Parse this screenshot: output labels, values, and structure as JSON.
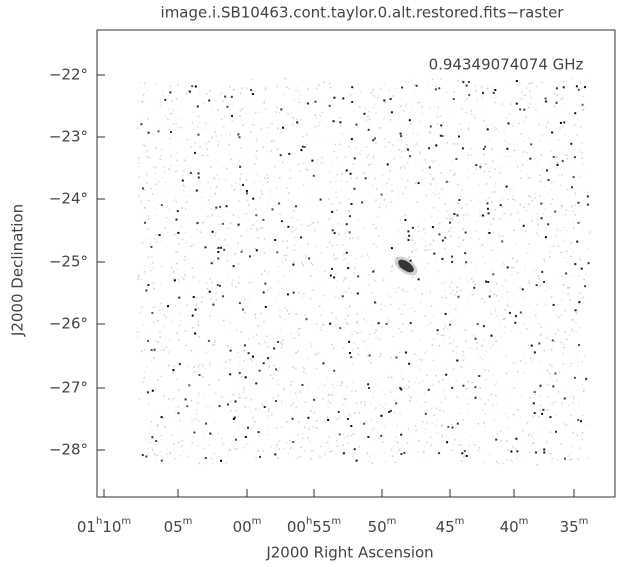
{
  "title": "image.i.SB10463.cont.taylor.0.alt.restored.fits−raster",
  "frequency": "0.94349074074 GHz",
  "y_axis": {
    "label": "J2000 Declination",
    "ticks": [
      "−22°",
      "−23°",
      "−24°",
      "−25°",
      "−26°",
      "−27°",
      "−28°"
    ]
  },
  "x_axis": {
    "label": "J2000 Right Ascension",
    "ticks": [
      [
        "01",
        "h",
        "10",
        "m"
      ],
      [
        "05",
        "m"
      ],
      [
        "00",
        "m"
      ],
      [
        "00",
        "h",
        "55",
        "m"
      ],
      [
        "50",
        "m"
      ],
      [
        "45",
        "m"
      ],
      [
        "40",
        "m"
      ],
      [
        "35",
        "m"
      ]
    ]
  }
}
